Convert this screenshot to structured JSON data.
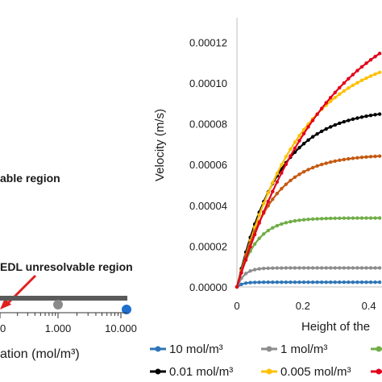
{
  "left_panel": {
    "label_resolvable": "able region",
    "label_unresolvable": "EDL unresolvable region",
    "tick_labels": [
      "0",
      "1.000",
      "10.000"
    ],
    "axis_label": "ation (mol/m³)",
    "colors": {
      "bar": "#5a5a5a",
      "gray_marker": "#8a8a8a",
      "blue_marker": "#1f6fcf",
      "arrow": "#e02020"
    }
  },
  "chart_data": {
    "type": "line",
    "ylabel": "Velocity (m/s)",
    "xlabel": "Height of the",
    "y_ticks": [
      "0.00000",
      "0.00002",
      "0.00004",
      "0.00006",
      "0.00008",
      "0.00010",
      "0.00012"
    ],
    "x_ticks": [
      "0",
      "0.2",
      "0.4"
    ],
    "ylim": [
      0,
      0.000132
    ],
    "xlim": [
      0,
      0.44
    ],
    "grid": false,
    "legend_position": "bottom",
    "series": [
      {
        "name": "10 mol/m³",
        "color": "#2e75b6",
        "vmax": 2.3e-06,
        "k": 60
      },
      {
        "name": "1 mol/m³",
        "color": "#8c8c8c",
        "vmax": 9.3e-06,
        "k": 45
      },
      {
        "name": "",
        "color": "#70ad47",
        "vmax": 3.38e-05,
        "k": 18
      },
      {
        "name": "0.01 mol/m³",
        "color": "#000000",
        "vmax": 8.75e-05,
        "k": 8.0
      },
      {
        "name": "0.005 mol/m³",
        "color": "#ffc000",
        "vmax": 0.000117,
        "k": 5.3
      },
      {
        "name": "",
        "color": "#c55a11",
        "vmax": 6.5e-05,
        "k": 10
      },
      {
        "name": "",
        "color": "#e3001b",
        "vmax": 0.000145,
        "k": 3.6
      }
    ],
    "legend_entries": [
      {
        "name": "10 mol/m³",
        "color": "#2e75b6"
      },
      {
        "name": "1 mol/m³",
        "color": "#8c8c8c"
      },
      {
        "name": "",
        "color": "#70ad47"
      },
      {
        "name": "0.01 mol/m³",
        "color": "#000000"
      },
      {
        "name": "0.005 mol/m³",
        "color": "#ffc000"
      },
      {
        "name": "",
        "color": "#e3001b"
      }
    ]
  }
}
